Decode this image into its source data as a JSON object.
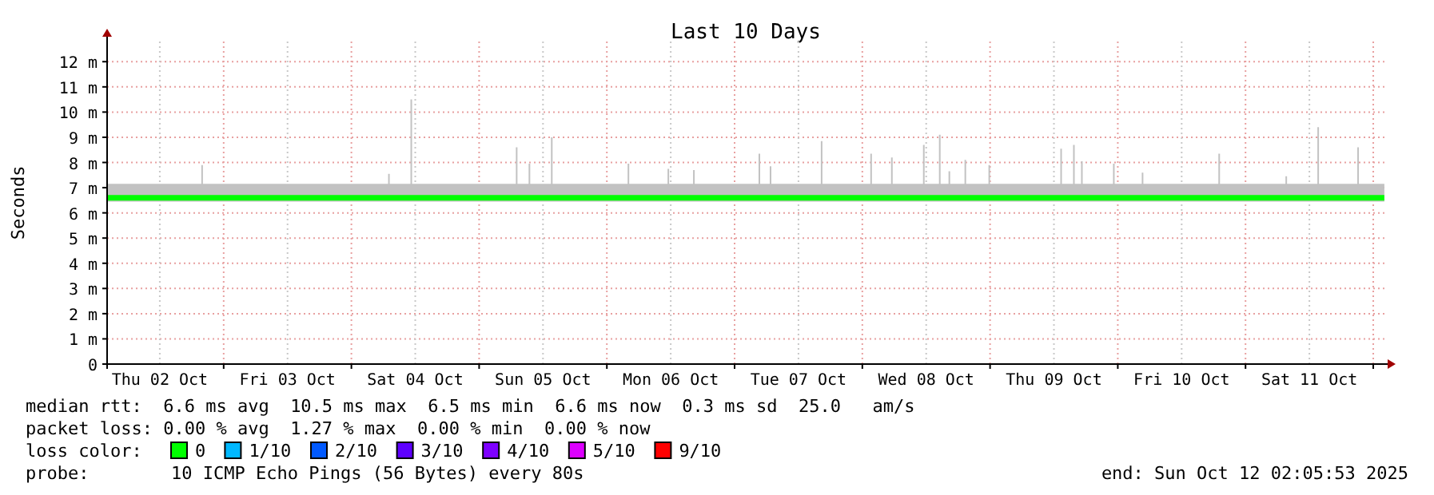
{
  "chart_data": {
    "type": "step",
    "title": "Last 10 Days",
    "ylabel": "Seconds",
    "xlim": [
      "2025-10-02T02:06",
      "2025-10-12T02:06"
    ],
    "xticks": [
      {
        "value": "2025-10-02T12:00",
        "label": "Thu 02 Oct"
      },
      {
        "value": "2025-10-03T00:00",
        "label": null
      },
      {
        "value": "2025-10-03T12:00",
        "label": "Fri 03 Oct"
      },
      {
        "value": "2025-10-04T00:00",
        "label": null
      },
      {
        "value": "2025-10-04T12:00",
        "label": "Sat 04 Oct"
      },
      {
        "value": "2025-10-05T00:00",
        "label": null
      },
      {
        "value": "2025-10-05T12:00",
        "label": "Sun 05 Oct"
      },
      {
        "value": "2025-10-06T00:00",
        "label": null
      },
      {
        "value": "2025-10-06T12:00",
        "label": "Mon 06 Oct"
      },
      {
        "value": "2025-10-07T00:00",
        "label": null
      },
      {
        "value": "2025-10-07T12:00",
        "label": "Tue 07 Oct"
      },
      {
        "value": "2025-10-08T00:00",
        "label": null
      },
      {
        "value": "2025-10-08T12:00",
        "label": "Wed 08 Oct"
      },
      {
        "value": "2025-10-09T00:00",
        "label": null
      },
      {
        "value": "2025-10-09T12:00",
        "label": "Thu 09 Oct"
      },
      {
        "value": "2025-10-10T00:00",
        "label": null
      },
      {
        "value": "2025-10-10T12:00",
        "label": "Fri 10 Oct"
      },
      {
        "value": "2025-10-11T00:00",
        "label": null
      },
      {
        "value": "2025-10-11T12:00",
        "label": "Sat 11 Oct"
      },
      {
        "value": "2025-10-12T00:00",
        "label": null
      }
    ],
    "ylim": [
      0,
      12.8
    ],
    "yticks": [
      0,
      {
        "value": 1,
        "label": "1 m"
      },
      {
        "value": 2,
        "label": "2 m"
      },
      {
        "value": 3,
        "label": "3 m"
      },
      {
        "value": 4,
        "label": "4 m"
      },
      {
        "value": 5,
        "label": "5 m"
      },
      {
        "value": 6,
        "label": "6 m"
      },
      {
        "value": 7,
        "label": "7 m"
      },
      {
        "value": 8,
        "label": "8 m"
      },
      {
        "value": 9,
        "label": "9 m"
      },
      {
        "value": 10,
        "label": "10 m"
      },
      {
        "value": 11,
        "label": "11 m"
      },
      {
        "value": 12,
        "label": "12 m"
      }
    ],
    "grid": true,
    "series": [
      {
        "color": "#00ff00",
        "x": [
          "2025-10-02T02:06",
          "2025-10-02T19:48",
          "2025-10-02T20:06",
          "2025-10-04T06:54",
          "2025-10-04T07:12",
          "2025-10-04T11:06",
          "2025-10-04T11:24",
          "2025-10-05T06:54",
          "2025-10-05T07:12",
          "2025-10-05T09:18",
          "2025-10-05T09:36",
          "2025-10-05T13:30",
          "2025-10-05T13:48",
          "2025-10-06T03:54",
          "2025-10-06T04:12",
          "2025-10-06T11:24",
          "2025-10-06T11:42",
          "2025-10-06T16:12",
          "2025-10-06T16:30",
          "2025-10-07T04:30",
          "2025-10-07T04:48",
          "2025-10-07T06:36",
          "2025-10-07T06:54",
          "2025-10-07T16:12",
          "2025-10-07T16:30",
          "2025-10-08T01:30",
          "2025-10-08T01:48",
          "2025-10-08T05:24",
          "2025-10-08T05:42",
          "2025-10-08T11:24",
          "2025-10-08T11:42",
          "2025-10-08T14:24",
          "2025-10-08T14:42",
          "2025-10-08T16:12",
          "2025-10-08T16:30",
          "2025-10-08T19:12",
          "2025-10-08T19:30",
          "2025-10-08T23:42",
          "2025-10-09T00:00",
          "2025-10-09T13:12",
          "2025-10-09T13:30",
          "2025-10-09T15:36",
          "2025-10-09T15:54",
          "2025-10-09T17:06",
          "2025-10-09T17:24",
          "2025-10-09T23:06",
          "2025-10-09T23:24",
          "2025-10-10T04:30",
          "2025-10-10T04:48",
          "2025-10-10T18:54",
          "2025-10-10T19:12",
          "2025-10-11T07:30",
          "2025-10-11T07:48",
          "2025-10-11T13:30",
          "2025-10-11T13:48",
          "2025-10-11T21:00",
          "2025-10-11T21:18",
          "2025-10-12T02:05"
        ],
        "values": [
          6.6,
          6.6,
          6.6,
          6.6,
          6.6,
          6.6,
          6.6,
          6.6,
          6.6,
          6.6,
          6.6,
          6.6,
          6.6,
          6.6,
          6.6,
          6.6,
          6.6,
          6.6,
          6.6,
          6.6,
          6.6,
          6.6,
          6.6,
          6.6,
          6.6,
          6.6,
          6.6,
          6.6,
          6.6,
          6.6,
          6.6,
          6.6,
          6.6,
          6.6,
          6.6,
          6.6,
          6.6,
          6.6,
          6.6,
          6.6,
          6.6,
          6.6,
          6.6,
          6.6,
          6.6,
          6.6,
          6.6,
          6.6,
          6.6,
          6.6,
          6.6,
          6.6,
          6.6,
          6.6,
          6.6,
          6.6,
          6.6,
          6.6
        ],
        "lower": [
          6.45,
          6.45,
          6.45,
          6.45,
          6.45,
          6.45,
          6.45,
          6.45,
          6.45,
          6.45,
          6.45,
          6.45,
          6.45,
          6.45,
          6.45,
          6.45,
          6.45,
          6.45,
          6.45,
          6.45,
          6.45,
          6.45,
          6.45,
          6.45,
          6.45,
          6.45,
          6.45,
          6.45,
          6.45,
          6.45,
          6.45,
          6.45,
          6.45,
          6.45,
          6.45,
          6.45,
          6.45,
          6.45,
          6.45,
          6.45,
          6.45,
          6.45,
          6.45,
          6.45,
          6.45,
          6.45,
          6.45,
          6.45,
          6.45,
          6.45,
          6.45,
          6.45,
          6.45,
          6.45,
          6.45,
          6.45,
          6.45,
          6.45
        ],
        "upper": [
          7.15,
          7.9,
          7.15,
          7.55,
          7.15,
          10.5,
          7.15,
          8.6,
          7.15,
          7.95,
          7.15,
          9.0,
          7.15,
          7.95,
          7.15,
          7.75,
          7.15,
          7.7,
          7.15,
          8.35,
          7.15,
          7.85,
          7.15,
          8.85,
          7.15,
          8.35,
          7.15,
          8.2,
          7.15,
          8.7,
          7.15,
          9.1,
          7.15,
          7.65,
          7.15,
          8.1,
          7.15,
          7.9,
          7.15,
          8.55,
          7.15,
          8.7,
          7.15,
          8.05,
          7.15,
          7.95,
          7.15,
          7.6,
          7.15,
          8.35,
          7.15,
          7.45,
          7.15,
          9.4,
          7.15,
          8.6,
          7.15,
          7.15
        ]
      }
    ],
    "annotations": [
      "median rtt:  6.6 ms avg  10.5 ms max  6.5 ms min  6.6 ms now  0.3 ms sd  25.0   am/s",
      "packet loss: 0.00 % avg  1.27 % max  0.00 % min  0.00 % now",
      "loss color:",
      "0",
      "1/10",
      "2/10",
      "3/10",
      "4/10",
      "5/10",
      "9/10",
      "probe:",
      "10 ICMP Echo Pings (56 Bytes) every 80s",
      "end: Sun Oct 12 02:05:53 2025"
    ]
  }
}
